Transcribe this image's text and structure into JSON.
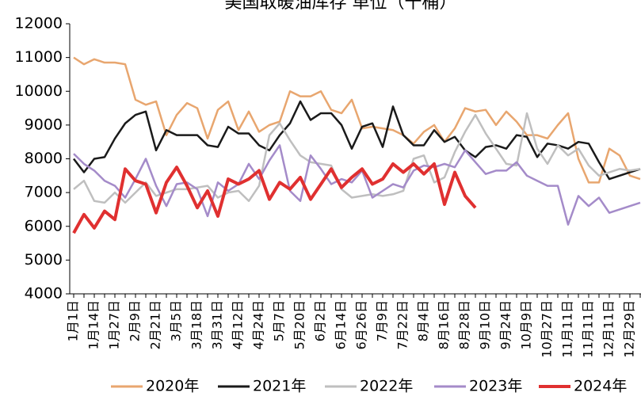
{
  "chart_data": {
    "type": "line",
    "title": "美国取暖油库存 单位（千桶）",
    "categories": [
      "1月1日",
      null,
      "1月14日",
      null,
      "1月27日",
      null,
      "2月9日",
      null,
      "2月21日",
      null,
      "3月5日",
      null,
      "3月18日",
      null,
      "3月31日",
      null,
      "4月12日",
      null,
      "4月24日",
      null,
      "5月7日",
      null,
      "5月20日",
      null,
      "6月2日",
      null,
      "6月14日",
      null,
      "6月26日",
      null,
      "7月9日",
      null,
      "7月22日",
      null,
      "8月4日",
      null,
      "8月16日",
      null,
      "8月28日",
      null,
      "9月10日",
      null,
      "9月24日",
      null,
      "10月9日",
      null,
      "10月27日",
      null,
      "11月11日",
      null,
      "11月11日",
      null,
      "12月11日",
      null,
      "12月29日",
      null
    ],
    "series": [
      {
        "name": "2020年",
        "color": "#e8a66f",
        "values": [
          11000,
          10800,
          10950,
          10850,
          10850,
          10800,
          9750,
          9600,
          9700,
          8700,
          9300,
          9650,
          9500,
          8600,
          9450,
          9700,
          8850,
          9400,
          8800,
          9000,
          9100,
          10000,
          9850,
          9850,
          10000,
          9450,
          9350,
          9750,
          8900,
          8950,
          8900,
          8850,
          8700,
          8450,
          8800,
          9000,
          8500,
          8900,
          9500,
          9400,
          9450,
          9000,
          9400,
          9100,
          8700,
          8700,
          8600,
          9000,
          9350,
          8000,
          7300,
          7300,
          8300,
          8100,
          7500,
          7400
        ]
      },
      {
        "name": "2021年",
        "color": "#1a1a1a",
        "values": [
          8000,
          7600,
          8000,
          8050,
          8600,
          9050,
          9300,
          9400,
          8250,
          8850,
          8700,
          8700,
          8700,
          8400,
          8350,
          8950,
          8750,
          8750,
          8400,
          8250,
          8700,
          9050,
          9700,
          9150,
          9350,
          9350,
          9000,
          8300,
          8950,
          9050,
          8350,
          9550,
          8700,
          8400,
          8400,
          8850,
          8500,
          8650,
          8250,
          8050,
          8350,
          8400,
          8300,
          8700,
          8650,
          8050,
          8450,
          8400,
          8300,
          8500,
          8450,
          7900,
          7400,
          7500,
          7600,
          7700
        ]
      },
      {
        "name": "2022年",
        "color": "#bfbfbf",
        "values": [
          7100,
          7350,
          6750,
          6700,
          7000,
          6700,
          7000,
          7300,
          6900,
          7000,
          7100,
          7100,
          7150,
          7200,
          6850,
          7000,
          7050,
          6750,
          7200,
          8700,
          9050,
          8550,
          8100,
          7900,
          7850,
          7800,
          7100,
          6850,
          6900,
          6950,
          6900,
          6950,
          7050,
          8000,
          8100,
          7300,
          7450,
          8200,
          8800,
          9300,
          8750,
          8300,
          7850,
          7800,
          9350,
          8300,
          7850,
          8400,
          8100,
          8300,
          7800,
          7500,
          7600,
          7700,
          7650,
          7700
        ]
      },
      {
        "name": "2023年",
        "color": "#a48bc9",
        "values": [
          8150,
          7850,
          7650,
          7350,
          7200,
          6850,
          7400,
          8000,
          7200,
          6600,
          7250,
          7300,
          7100,
          6300,
          7300,
          7050,
          7250,
          7850,
          7400,
          7950,
          8400,
          7050,
          6750,
          8100,
          7700,
          7250,
          7400,
          7300,
          7650,
          6850,
          7050,
          7250,
          7150,
          7650,
          7800,
          7750,
          7850,
          7750,
          8250,
          7900,
          7550,
          7650,
          7650,
          7900,
          7500,
          7350,
          7200,
          7200,
          6050,
          6900,
          6600,
          6850,
          6400,
          6500,
          6600,
          6700
        ]
      },
      {
        "name": "2024年",
        "color": "#e03030",
        "values": [
          5800,
          6350,
          5950,
          6450,
          6200,
          7700,
          7350,
          7250,
          6400,
          7300,
          7750,
          7200,
          6550,
          7050,
          6300,
          7400,
          7250,
          7400,
          7650,
          6800,
          7300,
          7100,
          7450,
          6800,
          7250,
          7700,
          7150,
          7450,
          7700,
          7250,
          7400,
          7850,
          7600,
          7850,
          7550,
          7850,
          6650,
          7600,
          6900,
          6550,
          null,
          null,
          null,
          null,
          null,
          null,
          null,
          null,
          null,
          null,
          null,
          null,
          null,
          null,
          null,
          null
        ]
      }
    ],
    "ylim": [
      4000,
      12000
    ],
    "yticks": [
      4000,
      5000,
      6000,
      7000,
      8000,
      9000,
      10000,
      11000,
      12000
    ]
  }
}
